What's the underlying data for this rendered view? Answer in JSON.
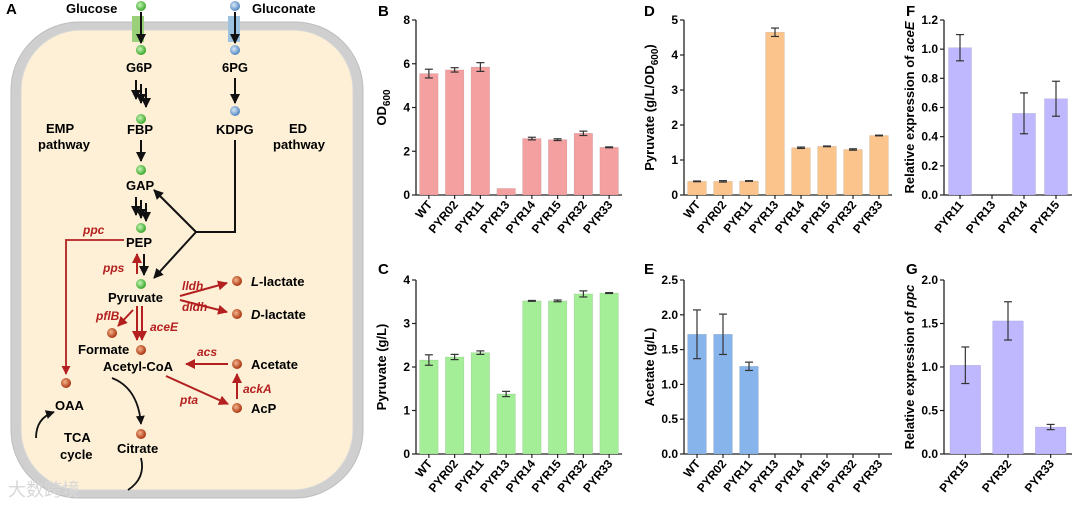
{
  "pathway": {
    "panel_label": "A",
    "nodes": {
      "glucose": "Glucose",
      "gluconate": "Gluconate",
      "g6p": "G6P",
      "six_pg": "6PG",
      "fbp": "FBP",
      "kdpg": "KDPG",
      "gap": "GAP",
      "pep": "PEP",
      "pyruvate": "Pyruvate",
      "l_lactate_prefix": "L",
      "l_lactate_suffix": "-lactate",
      "d_lactate_prefix": "D",
      "d_lactate_suffix": "-lactate",
      "formate": "Formate",
      "acetyl_coa": "Acetyl-CoA",
      "acetate": "Acetate",
      "acp": "AcP",
      "oaa": "OAA",
      "citrate": "Citrate"
    },
    "labels": {
      "emp_1": "EMP",
      "emp_2": "pathway",
      "ed_1": "ED",
      "ed_2": "pathway",
      "tca_1": "TCA",
      "tca_2": "cycle"
    },
    "genes": {
      "ppc": "ppc",
      "pps": "pps",
      "lldh": "lldh",
      "dldh": "dldh",
      "pflB": "pflB",
      "aceE": "aceE",
      "acs": "acs",
      "ackA": "ackA",
      "pta": "pta"
    },
    "colors": {
      "cell_fill": "#fdf0d6",
      "cell_border": "#c7c7c7",
      "green_node": "#5cc84b",
      "blue_node": "#6a9fd0",
      "red_node": "#c84a1c",
      "gene_red": "#b42020"
    }
  },
  "chart_data": [
    {
      "id": "B",
      "panel_label": "B",
      "type": "bar",
      "ylabel_main": "OD",
      "ylabel_sub": "600",
      "categories": [
        "WT",
        "PYR02",
        "PYR11",
        "PYR13",
        "PYR14",
        "PYR15",
        "PYR32",
        "PYR33"
      ],
      "values": [
        5.55,
        5.72,
        5.85,
        0.3,
        2.58,
        2.53,
        2.82,
        2.18
      ],
      "errors": [
        0.2,
        0.1,
        0.2,
        0,
        0.06,
        0.04,
        0.1,
        0.02
      ],
      "ylim": [
        0,
        8
      ],
      "yticks": [
        "0",
        "2",
        "4",
        "6",
        "8"
      ],
      "color": "#f4a0a0"
    },
    {
      "id": "C",
      "panel_label": "C",
      "type": "bar",
      "ylabel_main": "Pyruvate (g/L)",
      "ylabel_sub": "",
      "categories": [
        "WT",
        "PYR02",
        "PYR11",
        "PYR13",
        "PYR14",
        "PYR15",
        "PYR32",
        "PYR33"
      ],
      "values": [
        2.16,
        2.23,
        2.33,
        1.38,
        3.52,
        3.52,
        3.68,
        3.7
      ],
      "errors": [
        0.12,
        0.06,
        0.04,
        0.06,
        0.01,
        0.02,
        0.07,
        0.01
      ],
      "ylim": [
        0,
        4
      ],
      "yticks": [
        "0",
        "1",
        "2",
        "3",
        "4"
      ],
      "color": "#a4ee98"
    },
    {
      "id": "D",
      "panel_label": "D",
      "type": "bar",
      "ylabel_main": "Pyruvate (g/L/OD",
      "ylabel_sub": "600",
      "ylabel_tail": ")",
      "categories": [
        "WT",
        "PYR02",
        "PYR11",
        "PYR13",
        "PYR14",
        "PYR15",
        "PYR32",
        "PYR33"
      ],
      "values": [
        0.39,
        0.39,
        0.4,
        4.65,
        1.35,
        1.39,
        1.3,
        1.7
      ],
      "errors": [
        0.01,
        0.02,
        0.01,
        0.12,
        0.02,
        0.01,
        0.02,
        0.01
      ],
      "ylim": [
        0,
        5
      ],
      "yticks": [
        "0",
        "1",
        "2",
        "3",
        "4",
        "5"
      ],
      "color": "#fbc48c"
    },
    {
      "id": "E",
      "panel_label": "E",
      "type": "bar",
      "ylabel_main": "Acetate (g/L)",
      "ylabel_sub": "",
      "categories": [
        "WT",
        "PYR02",
        "PYR11",
        "PYR13",
        "PYR14",
        "PYR15",
        "PYR32",
        "PYR33"
      ],
      "values": [
        1.72,
        1.72,
        1.26,
        0,
        0,
        0,
        0,
        0
      ],
      "errors": [
        0.35,
        0.29,
        0.06,
        0,
        0,
        0,
        0,
        0
      ],
      "ylim": [
        0,
        2.5
      ],
      "yticks": [
        "0.0",
        "0.5",
        "1.0",
        "1.5",
        "2.0",
        "2.5"
      ],
      "color": "#88b4ec"
    },
    {
      "id": "F",
      "panel_label": "F",
      "type": "bar",
      "ylabel_main": "Relative expression of ",
      "ylabel_italic": "aceE",
      "categories": [
        "PYR11",
        "PYR13",
        "PYR14",
        "PYR15"
      ],
      "values": [
        1.01,
        0,
        0.56,
        0.66
      ],
      "errors": [
        0.09,
        0,
        0.14,
        0.12
      ],
      "ylim": [
        0,
        1.2
      ],
      "yticks": [
        "0.0",
        "0.2",
        "0.4",
        "0.6",
        "0.8",
        "1.0",
        "1.2"
      ],
      "color": "#c0b8ff"
    },
    {
      "id": "G",
      "panel_label": "G",
      "type": "bar",
      "ylabel_main": "Relative expression of ",
      "ylabel_italic": "ppc",
      "categories": [
        "PYR15",
        "PYR32",
        "PYR33"
      ],
      "values": [
        1.02,
        1.53,
        0.31
      ],
      "errors": [
        0.21,
        0.22,
        0.03
      ],
      "ylim": [
        0,
        2.0
      ],
      "yticks": [
        "0.0",
        "0.5",
        "1.0",
        "1.5",
        "2.0"
      ],
      "color": "#c0b8ff"
    }
  ],
  "watermark": "大数跨境"
}
